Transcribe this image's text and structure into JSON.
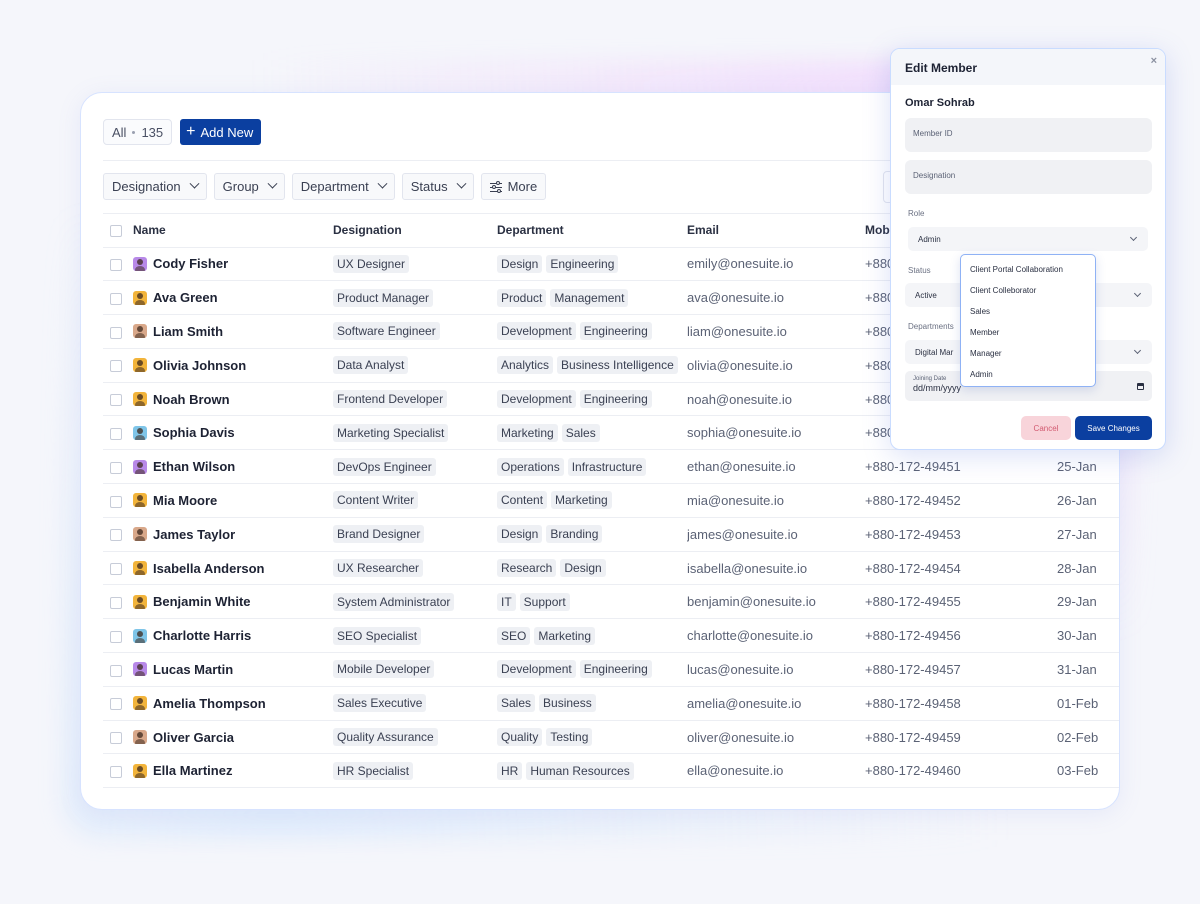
{
  "toolbar": {
    "all_label": "All",
    "all_count": "135",
    "add_label": "Add New"
  },
  "filters": [
    {
      "label": "Designation",
      "icon": "chevron-down-icon"
    },
    {
      "label": "Group",
      "icon": "chevron-down-icon"
    },
    {
      "label": "Department",
      "icon": "chevron-down-icon"
    },
    {
      "label": "Status",
      "icon": "chevron-down-icon"
    }
  ],
  "more_label": "More",
  "columns": {
    "name": "Name",
    "designation": "Designation",
    "department": "Department",
    "email": "Email",
    "mobile": "Mobi"
  },
  "avatar_colors": [
    "#b889e8",
    "#f2b43b",
    "#d9a88a",
    "#f2b43b",
    "#f2b43b",
    "#7fc5e8"
  ],
  "rows": [
    {
      "name": "Cody Fisher",
      "designation": "UX Designer",
      "departments": [
        "Design",
        "Engineering"
      ],
      "email": "emily@onesuite.io",
      "mobile": "+880",
      "date": ""
    },
    {
      "name": "Ava Green",
      "designation": "Product Manager",
      "departments": [
        "Product",
        "Management"
      ],
      "email": "ava@onesuite.io",
      "mobile": "+880",
      "date": ""
    },
    {
      "name": "Liam Smith",
      "designation": "Software Engineer",
      "departments": [
        "Development",
        "Engineering"
      ],
      "email": "liam@onesuite.io",
      "mobile": "+880",
      "date": ""
    },
    {
      "name": "Olivia Johnson",
      "designation": "Data Analyst",
      "departments": [
        "Analytics",
        "Business Intelligence"
      ],
      "email": "olivia@onesuite.io",
      "mobile": "+880",
      "date": ""
    },
    {
      "name": "Noah Brown",
      "designation": "Frontend Developer",
      "departments": [
        "Development",
        "Engineering"
      ],
      "email": "noah@onesuite.io",
      "mobile": "+880",
      "date": ""
    },
    {
      "name": "Sophia Davis",
      "designation": "Marketing Specialist",
      "departments": [
        "Marketing",
        "Sales"
      ],
      "email": "sophia@onesuite.io",
      "mobile": "+880",
      "date": ""
    },
    {
      "name": "Ethan Wilson",
      "designation": "DevOps Engineer",
      "departments": [
        "Operations",
        "Infrastructure"
      ],
      "email": "ethan@onesuite.io",
      "mobile": "+880-172-49451",
      "date": "25-Jan"
    },
    {
      "name": "Mia Moore",
      "designation": "Content Writer",
      "departments": [
        "Content",
        "Marketing"
      ],
      "email": "mia@onesuite.io",
      "mobile": "+880-172-49452",
      "date": "26-Jan"
    },
    {
      "name": "James Taylor",
      "designation": "Brand Designer",
      "departments": [
        "Design",
        "Branding"
      ],
      "email": "james@onesuite.io",
      "mobile": "+880-172-49453",
      "date": "27-Jan"
    },
    {
      "name": "Isabella Anderson",
      "designation": "UX Researcher",
      "departments": [
        "Research",
        "Design"
      ],
      "email": "isabella@onesuite.io",
      "mobile": "+880-172-49454",
      "date": "28-Jan"
    },
    {
      "name": "Benjamin White",
      "designation": "System Administrator",
      "departments": [
        "IT",
        "Support"
      ],
      "email": "benjamin@onesuite.io",
      "mobile": "+880-172-49455",
      "date": "29-Jan"
    },
    {
      "name": "Charlotte Harris",
      "designation": "SEO Specialist",
      "departments": [
        "SEO",
        "Marketing"
      ],
      "email": "charlotte@onesuite.io",
      "mobile": "+880-172-49456",
      "date": "30-Jan"
    },
    {
      "name": "Lucas Martin",
      "designation": "Mobile Developer",
      "departments": [
        "Development",
        "Engineering"
      ],
      "email": "lucas@onesuite.io",
      "mobile": "+880-172-49457",
      "date": "31-Jan"
    },
    {
      "name": "Amelia Thompson",
      "designation": "Sales Executive",
      "departments": [
        "Sales",
        "Business"
      ],
      "email": "amelia@onesuite.io",
      "mobile": "+880-172-49458",
      "date": "01-Feb"
    },
    {
      "name": "Oliver Garcia",
      "designation": "Quality Assurance",
      "departments": [
        "Quality",
        "Testing"
      ],
      "email": "oliver@onesuite.io",
      "mobile": "+880-172-49459",
      "date": "02-Feb"
    },
    {
      "name": "Ella Martinez",
      "designation": "HR Specialist",
      "departments": [
        "HR",
        "Human Resources"
      ],
      "email": "ella@onesuite.io",
      "mobile": "+880-172-49460",
      "date": "03-Feb"
    }
  ],
  "modal": {
    "title": "Edit Member",
    "close": "×",
    "member_name": "Omar Sohrab",
    "member_id_placeholder": "Member ID",
    "designation_placeholder": "Designation",
    "role_label": "Role",
    "role_value": "Admin",
    "status_label": "Status",
    "status_value": "Active",
    "departments_label": "Departments",
    "departments_value": "Digital Mar",
    "joining_label": "Joining Date",
    "joining_value": "dd/mm/yyyy",
    "cancel_label": "Cancel",
    "save_label": "Save Changes"
  },
  "role_options": [
    "Client Portal Collaboration",
    "Client Colleborator",
    "Sales",
    "Member",
    "Manager",
    "Admin"
  ]
}
